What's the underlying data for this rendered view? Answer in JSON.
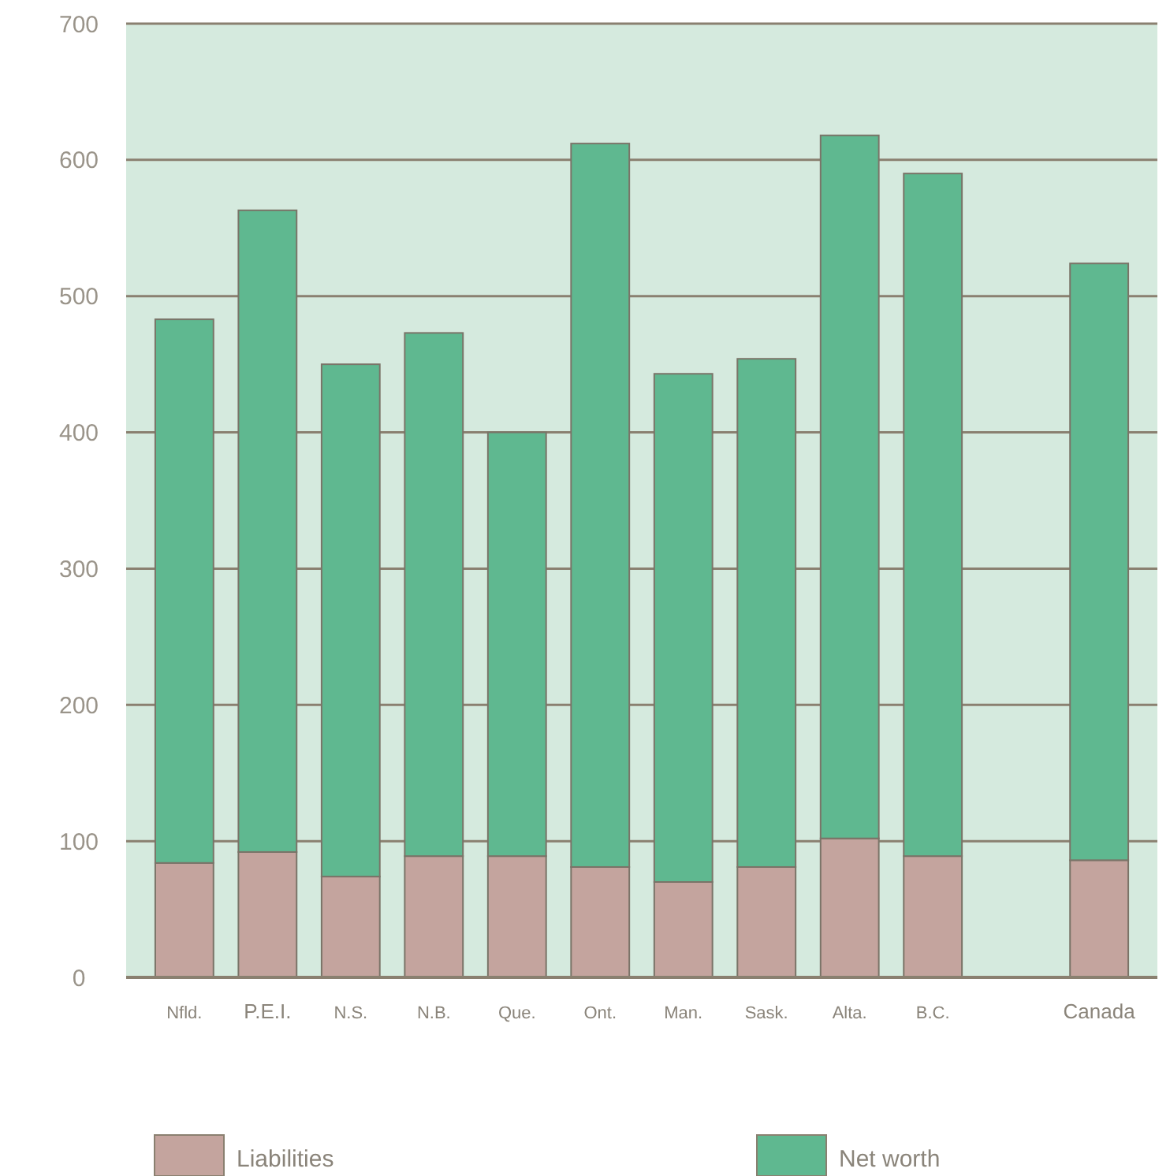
{
  "chart_data": {
    "type": "bar",
    "stacked": true,
    "categories": [
      "Nfld.",
      "P.E.I.",
      "N.S.",
      "N.B.",
      "Que.",
      "Ont.",
      "Man.",
      "Sask.",
      "Alta.",
      "B.C.",
      null,
      "Canada"
    ],
    "series": [
      {
        "name": "Liabilities",
        "color": "#c4a49e",
        "values": [
          84,
          92,
          74,
          89,
          89,
          81,
          70,
          81,
          102,
          89,
          null,
          86
        ]
      },
      {
        "name": "Net worth",
        "color": "#5fb890",
        "values": [
          399,
          471,
          376,
          384,
          311,
          531,
          373,
          373,
          516,
          501,
          null,
          438
        ]
      }
    ],
    "ylim": [
      0,
      700
    ],
    "yticks": [
      0,
      100,
      200,
      300,
      400,
      500,
      600,
      700
    ],
    "grid": "y",
    "legend": "bottom"
  }
}
